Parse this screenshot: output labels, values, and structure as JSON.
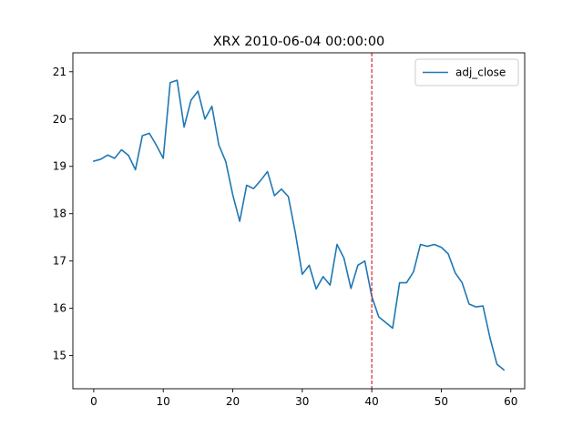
{
  "chart_data": {
    "type": "line",
    "title": "XRX 2010-06-04 00:00:00",
    "xlabel": "",
    "ylabel": "",
    "xlim": [
      -3,
      62
    ],
    "ylim": [
      14.3,
      21.4
    ],
    "xticks": [
      0,
      10,
      20,
      30,
      40,
      50,
      60
    ],
    "yticks": [
      15,
      16,
      17,
      18,
      19,
      20,
      21
    ],
    "grid": false,
    "legend_position": "top-right",
    "series": [
      {
        "name": "adj_close",
        "color": "#1f77b4",
        "x": [
          0,
          1,
          2,
          3,
          4,
          5,
          6,
          7,
          8,
          9,
          10,
          11,
          12,
          13,
          14,
          15,
          16,
          17,
          18,
          19,
          20,
          21,
          22,
          23,
          24,
          25,
          26,
          27,
          28,
          29,
          30,
          31,
          32,
          33,
          34,
          35,
          36,
          37,
          38,
          39,
          40,
          41,
          42,
          43,
          44,
          45,
          46,
          47,
          48,
          49,
          50,
          51,
          52,
          53,
          54,
          55,
          56,
          57,
          58,
          59
        ],
        "values": [
          19.11,
          19.15,
          19.24,
          19.17,
          19.35,
          19.23,
          18.93,
          19.65,
          19.7,
          19.45,
          19.17,
          20.77,
          20.82,
          19.83,
          20.4,
          20.59,
          20.0,
          20.27,
          19.45,
          19.1,
          18.4,
          17.84,
          18.6,
          18.53,
          18.7,
          18.89,
          18.38,
          18.52,
          18.36,
          17.6,
          16.72,
          16.91,
          16.41,
          16.67,
          16.49,
          17.35,
          17.06,
          16.42,
          16.91,
          17.0,
          16.25,
          15.82,
          15.7,
          15.58,
          16.54,
          16.54,
          16.77,
          17.35,
          17.31,
          17.35,
          17.29,
          17.15,
          16.75,
          16.54,
          16.09,
          16.03,
          16.05,
          15.38,
          14.82,
          14.7
        ]
      }
    ],
    "vlines": [
      {
        "x": 40,
        "color": "#d62728",
        "style": "dashed"
      }
    ]
  }
}
